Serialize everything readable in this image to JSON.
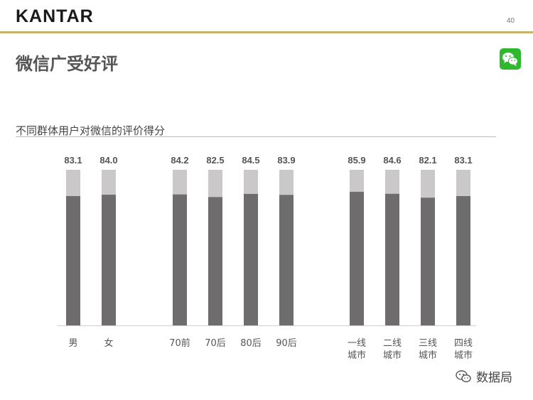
{
  "header": {
    "brand": "KANTAR",
    "page_number": "40"
  },
  "slide": {
    "title": "微信广受好评",
    "subtitle": "不同群体用户对微信的评价得分"
  },
  "watermark": {
    "text": "数据局"
  },
  "colors": {
    "bar_fill": "#6e6c6d",
    "bar_remainder": "#cac8c9",
    "accent_rule": "#c6b26a",
    "wechat_green": "#2db82d"
  },
  "chart_data": {
    "type": "bar",
    "stacked_to": 100,
    "ylim": [
      0,
      100
    ],
    "groups": [
      {
        "categories": [
          [
            "男"
          ],
          [
            "女"
          ]
        ],
        "values": [
          83.1,
          84.0
        ],
        "labels": [
          "83.1",
          "84.0"
        ]
      },
      {
        "categories": [
          [
            "70前"
          ],
          [
            "70后"
          ],
          [
            "80后"
          ],
          [
            "90后"
          ]
        ],
        "values": [
          84.2,
          82.5,
          84.5,
          83.9
        ],
        "labels": [
          "84.2",
          "82.5",
          "84.5",
          "83.9"
        ]
      },
      {
        "categories": [
          [
            "一线",
            "城市"
          ],
          [
            "二线",
            "城市"
          ],
          [
            "三线",
            "城市"
          ],
          [
            "四线",
            "城市"
          ]
        ],
        "values": [
          85.9,
          84.6,
          82.1,
          83.1
        ],
        "labels": [
          "85.9",
          "84.6",
          "82.1",
          "83.1"
        ]
      }
    ]
  }
}
